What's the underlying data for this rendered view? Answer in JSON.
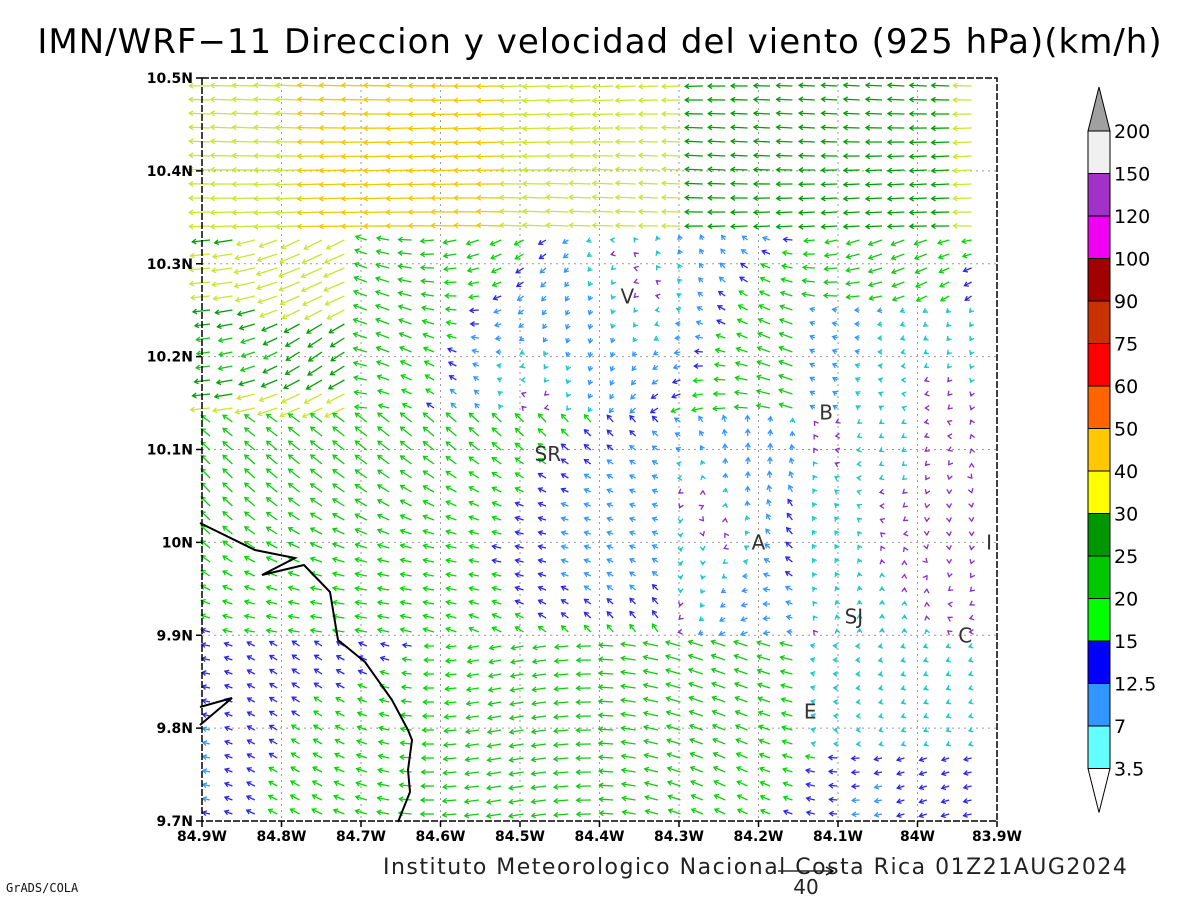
{
  "title": "IMN/WRF−11 Direccion y velocidad del viento (925 hPa)(km/h)",
  "footer": "Instituto Meteorologico Nacional Costa Rica 01Z21AUG2024",
  "credit": "GrADS/COLA",
  "map": {
    "lat_ticks": [
      "10.5N",
      "10.4N",
      "10.3N",
      "10.2N",
      "10.1N",
      "10N",
      "9.9N",
      "9.8N",
      "9.7N"
    ],
    "lon_ticks": [
      "84.9W",
      "84.8W",
      "84.7W",
      "84.6W",
      "84.5W",
      "84.4W",
      "84.3W",
      "84.2W",
      "84.1W",
      "84W",
      "83.9W"
    ],
    "lat_range": [
      9.7,
      10.5
    ],
    "lon_range": [
      -84.9,
      -83.9
    ],
    "places": [
      {
        "label": "V",
        "lon": -84.365,
        "lat": 10.265
      },
      {
        "label": "B",
        "lon": -84.115,
        "lat": 10.14
      },
      {
        "label": "SR",
        "lon": -84.465,
        "lat": 10.095
      },
      {
        "label": "A",
        "lon": -84.2,
        "lat": 10.0
      },
      {
        "label": "SJ",
        "lon": -84.08,
        "lat": 9.92
      },
      {
        "label": "C",
        "lon": -83.94,
        "lat": 9.9
      },
      {
        "label": "E",
        "lon": -84.135,
        "lat": 9.818
      },
      {
        "label": "I",
        "lon": -83.91,
        "lat": 10.0
      }
    ]
  },
  "reference_vector": {
    "label": "40"
  },
  "colorbar": {
    "labels": [
      "200",
      "150",
      "120",
      "100",
      "90",
      "75",
      "60",
      "50",
      "40",
      "30",
      "25",
      "20",
      "15",
      "12.5",
      "7",
      "3.5"
    ],
    "colors_top_to_bottom": [
      "#a0a0a0",
      "#f0f0f0",
      "#a032c8",
      "#f000f0",
      "#a00000",
      "#c83200",
      "#ff0000",
      "#ff6400",
      "#ffc800",
      "#ffff00",
      "#009600",
      "#00c800",
      "#00ff00",
      "#0000ff",
      "#3296ff",
      "#64ffff",
      "#ffffff"
    ]
  },
  "wind_colors": {
    "3.5-7": "#1ec8c8",
    "7-12.5": "#3296ff",
    "12.5-15": "#2828e6",
    "15-20": "#00d800",
    "20-25": "#14c814",
    "25-30": "#00a000",
    "30-40": "#c8e632",
    "40-50": "#f0c800",
    "50-60": "#ff7800",
    "60-75": "#ff2020",
    "weak": "#8c2ccc"
  }
}
